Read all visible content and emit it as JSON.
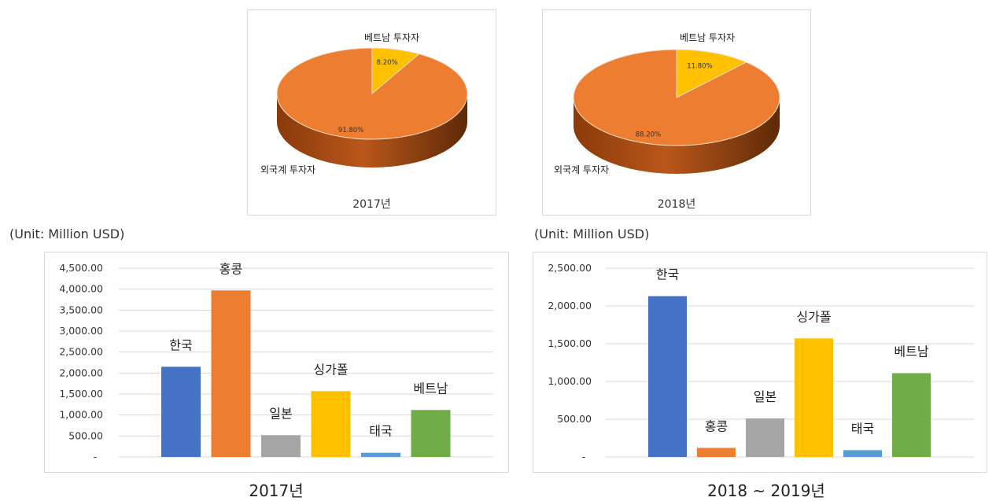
{
  "chart_data": [
    {
      "type": "pie",
      "title": "2017년",
      "slices": [
        {
          "label": "베트남 투자자",
          "value": 8.2,
          "value_label": "8.20%",
          "color": "#FFC000"
        },
        {
          "label": "외국계 투자자",
          "value": 91.8,
          "value_label": "91.80%",
          "color": "#ED7D31"
        }
      ]
    },
    {
      "type": "pie",
      "title": "2018년",
      "slices": [
        {
          "label": "베트남 투자자",
          "value": 11.8,
          "value_label": "11.80%",
          "color": "#FFC000"
        },
        {
          "label": "외국계 투자자",
          "value": 88.2,
          "value_label": "88.20%",
          "color": "#ED7D31"
        }
      ]
    },
    {
      "type": "bar",
      "title": "2017년",
      "unit": "(Unit: Million USD)",
      "categories": [
        "한국",
        "홍콩",
        "일본",
        "싱가폴",
        "태국",
        "베트남"
      ],
      "values": [
        2150,
        3970,
        520,
        1570,
        100,
        1120
      ],
      "colors": [
        "#4472C4",
        "#ED7D31",
        "#A5A5A5",
        "#FFC000",
        "#5B9BD5",
        "#70AD47"
      ],
      "ylim": [
        0,
        4500
      ],
      "yticks": [
        "-",
        "500.00",
        "1,000.00",
        "1,500.00",
        "2,000.00",
        "2,500.00",
        "3,000.00",
        "3,500.00",
        "4,000.00",
        "4,500.00"
      ]
    },
    {
      "type": "bar",
      "title": "2018 ~ 2019년",
      "unit": "(Unit: Million USD)",
      "categories": [
        "한국",
        "홍콩",
        "일본",
        "싱가폴",
        "태국",
        "베트남"
      ],
      "values": [
        2130,
        120,
        510,
        1570,
        90,
        1110
      ],
      "colors": [
        "#4472C4",
        "#ED7D31",
        "#A5A5A5",
        "#FFC000",
        "#5B9BD5",
        "#70AD47"
      ],
      "ylim": [
        0,
        2500
      ],
      "yticks": [
        "-",
        "500.00",
        "1,000.00",
        "1,500.00",
        "2,000.00",
        "2,500.00"
      ]
    }
  ]
}
